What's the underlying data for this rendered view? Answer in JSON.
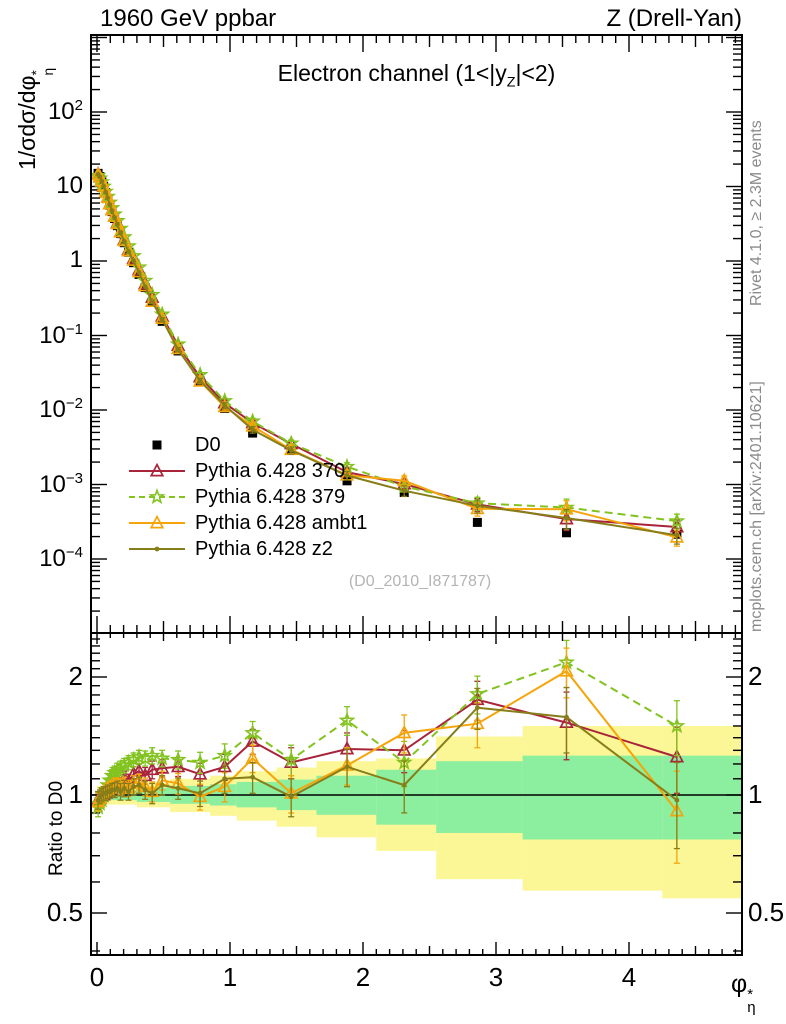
{
  "header": {
    "left": "1960 GeV ppbar",
    "right": "Z (Drell-Yan)"
  },
  "side_captions": {
    "top": "Rivet 4.1.0, ≥ 2.3M events",
    "bottom": "mcplots.cern.ch [arXiv:2401.10621]"
  },
  "watermark": "(D0_2010_I871787)",
  "main_panel": {
    "title": {
      "pre": "Electron channel (1<|y",
      "sub": "Z",
      "post": "|<2)"
    },
    "ylabel": {
      "main": "1/σdσ/dφ",
      "sup": "*",
      "sub": "η"
    },
    "yticks": [
      {
        "label": "10",
        "exp": "2",
        "value": 100
      },
      {
        "label": "10",
        "exp": "",
        "value": 10
      },
      {
        "label": "1",
        "exp": "",
        "value": 1
      },
      {
        "label": "10",
        "exp": "−1",
        "value": 0.1
      },
      {
        "label": "10",
        "exp": "−2",
        "value": 0.01
      },
      {
        "label": "10",
        "exp": "−3",
        "value": 0.001
      },
      {
        "label": "10",
        "exp": "−4",
        "value": 0.0001
      }
    ]
  },
  "ratio_panel": {
    "ylabel": "Ratio to D0",
    "yticks": [
      {
        "label": "2",
        "value": 2
      },
      {
        "label": "1",
        "value": 1
      },
      {
        "label": "0.5",
        "value": 0.5
      }
    ]
  },
  "xaxis": {
    "label": {
      "main": "φ",
      "sup": "*",
      "sub": "η"
    },
    "ticks": [
      {
        "label": "0",
        "value": 0
      },
      {
        "label": "1",
        "value": 1
      },
      {
        "label": "2",
        "value": 2
      },
      {
        "label": "3",
        "value": 3
      },
      {
        "label": "4",
        "value": 4
      }
    ]
  },
  "chart_data": [
    {
      "type": "line",
      "panel": "main",
      "title": "Electron channel (1<|y_Z|<2)",
      "xlabel": "phi*_eta",
      "ylabel": "1/sigma dsigma/dphi*_eta",
      "yscale": "log",
      "xlim": [
        -0.045,
        4.85
      ],
      "ylim": [
        1.05e-05,
        1100
      ],
      "x": [
        0.008,
        0.022,
        0.036,
        0.05,
        0.065,
        0.08,
        0.096,
        0.113,
        0.132,
        0.153,
        0.177,
        0.205,
        0.237,
        0.275,
        0.316,
        0.362,
        0.415,
        0.49,
        0.61,
        0.775,
        0.96,
        1.17,
        1.46,
        1.88,
        2.31,
        2.86,
        3.53,
        4.36
      ],
      "mc_rel_err": [
        0.05,
        0.04,
        0.04,
        0.04,
        0.04,
        0.04,
        0.04,
        0.04,
        0.045,
        0.045,
        0.05,
        0.05,
        0.05,
        0.05,
        0.05,
        0.055,
        0.06,
        0.06,
        0.065,
        0.075,
        0.09,
        0.1,
        0.11,
        0.13,
        0.16,
        0.2,
        0.3,
        0.24
      ],
      "series": [
        {
          "name": "D0",
          "kind": "data",
          "marker": "square",
          "line": "none",
          "color": "#000000",
          "values": [
            15.0,
            13.6,
            11.8,
            10.0,
            8.3,
            6.9,
            5.6,
            4.6,
            3.72,
            2.98,
            2.33,
            1.76,
            1.31,
            0.95,
            0.66,
            0.44,
            0.28,
            0.155,
            0.062,
            0.0245,
            0.0105,
            0.0049,
            0.0029,
            0.00112,
            0.00078,
            0.00031,
            0.000225,
            0.000215
          ]
        },
        {
          "name": "Pythia 6.428 370",
          "kind": "mc",
          "marker": "triangle",
          "line": "solid",
          "color": "#a9243a",
          "ratio_to_d0": [
            0.97,
            0.98,
            0.99,
            1.0,
            1.01,
            1.03,
            1.04,
            1.06,
            1.07,
            1.09,
            1.05,
            1.1,
            1.08,
            1.13,
            1.15,
            1.12,
            1.16,
            1.17,
            1.18,
            1.13,
            1.18,
            1.37,
            1.21,
            1.31,
            1.3,
            1.75,
            1.53,
            1.25
          ]
        },
        {
          "name": "Pythia 6.428 379",
          "kind": "mc",
          "marker": "star",
          "line": "dashed",
          "color": "#82c31f",
          "ratio_to_d0": [
            0.93,
            0.95,
            0.97,
            1.0,
            1.03,
            1.06,
            1.09,
            1.12,
            1.14,
            1.16,
            1.17,
            1.19,
            1.21,
            1.23,
            1.25,
            1.24,
            1.26,
            1.24,
            1.23,
            1.21,
            1.26,
            1.44,
            1.23,
            1.55,
            1.21,
            1.81,
            2.18,
            1.5
          ]
        },
        {
          "name": "Pythia 6.428 ambt1",
          "kind": "mc",
          "marker": "triangle",
          "line": "solid",
          "color": "#f5a50a",
          "ratio_to_d0": [
            0.96,
            0.98,
            1.0,
            1.01,
            1.02,
            1.03,
            1.04,
            1.05,
            1.06,
            1.06,
            1.05,
            1.06,
            1.04,
            1.07,
            1.08,
            1.05,
            1.02,
            1.09,
            1.07,
            0.99,
            1.05,
            1.24,
            1.01,
            1.19,
            1.44,
            1.52,
            2.07,
            0.91
          ]
        },
        {
          "name": "Pythia 6.428 z2",
          "kind": "mc",
          "marker": "dot",
          "line": "solid",
          "color": "#877d19",
          "ratio_to_d0": [
            0.97,
            0.99,
            1.0,
            1.01,
            1.01,
            1.02,
            1.02,
            1.03,
            1.03,
            1.04,
            1.02,
            1.04,
            1.02,
            1.05,
            1.06,
            1.03,
            1.01,
            1.06,
            1.04,
            1.01,
            1.1,
            1.11,
            0.99,
            1.18,
            1.06,
            1.67,
            1.58,
            0.97
          ]
        }
      ]
    },
    {
      "type": "ratio",
      "panel": "ratio",
      "ylabel": "Ratio to D0",
      "yscale": "log",
      "ylim": [
        0.39,
        2.59
      ],
      "ref_line": 1,
      "band_colors": {
        "inner": "#8cee9f",
        "outer": "#fbf796"
      },
      "band_segments": [
        {
          "x0": 0.0,
          "x1": 0.3,
          "green": [
            0.97,
            1.03
          ],
          "yellow": [
            0.945,
            1.055
          ]
        },
        {
          "x0": 0.3,
          "x1": 0.55,
          "green": [
            0.96,
            1.045
          ],
          "yellow": [
            0.93,
            1.075
          ]
        },
        {
          "x0": 0.55,
          "x1": 0.85,
          "green": [
            0.95,
            1.055
          ],
          "yellow": [
            0.905,
            1.1
          ]
        },
        {
          "x0": 0.85,
          "x1": 1.05,
          "green": [
            0.94,
            1.065
          ],
          "yellow": [
            0.885,
            1.12
          ]
        },
        {
          "x0": 1.05,
          "x1": 1.35,
          "green": [
            0.93,
            1.08
          ],
          "yellow": [
            0.86,
            1.15
          ]
        },
        {
          "x0": 1.35,
          "x1": 1.65,
          "green": [
            0.915,
            1.095
          ],
          "yellow": [
            0.83,
            1.175
          ]
        },
        {
          "x0": 1.65,
          "x1": 2.1,
          "green": [
            0.89,
            1.12
          ],
          "yellow": [
            0.78,
            1.22
          ]
        },
        {
          "x0": 2.1,
          "x1": 2.55,
          "green": [
            0.84,
            1.16
          ],
          "yellow": [
            0.72,
            1.24
          ]
        },
        {
          "x0": 2.55,
          "x1": 3.2,
          "green": [
            0.8,
            1.22
          ],
          "yellow": [
            0.61,
            1.41
          ]
        },
        {
          "x0": 3.2,
          "x1": 4.25,
          "green": [
            0.77,
            1.26
          ],
          "yellow": [
            0.57,
            1.5
          ]
        },
        {
          "x0": 4.25,
          "x1": 4.85,
          "green": [
            0.77,
            1.26
          ],
          "yellow": [
            0.545,
            1.5
          ]
        }
      ]
    }
  ]
}
